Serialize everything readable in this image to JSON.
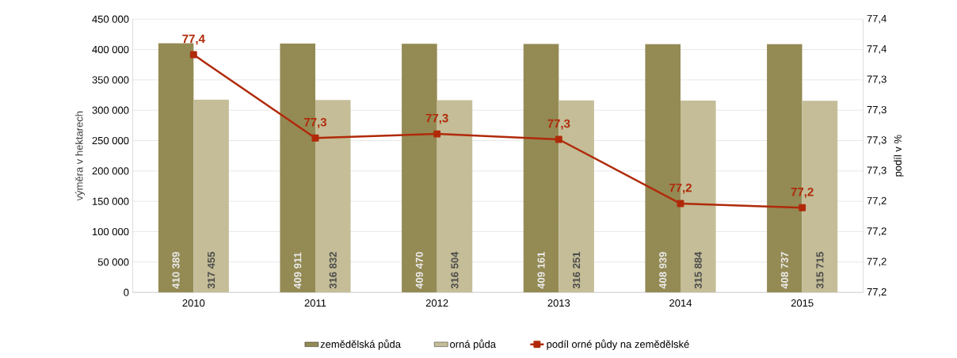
{
  "chart_data": {
    "type": "bar",
    "categories": [
      "2010",
      "2011",
      "2012",
      "2013",
      "2014",
      "2015"
    ],
    "series": [
      {
        "name": "zemědělská půda",
        "color": "#948a54",
        "values": [
          410389,
          409911,
          409470,
          409161,
          408939,
          408737
        ],
        "value_labels": [
          "410 389",
          "409 911",
          "409 470",
          "409 161",
          "408 939",
          "408 737"
        ]
      },
      {
        "name": "orná půda",
        "color": "#c4bd97",
        "values": [
          317455,
          316832,
          316504,
          316251,
          315884,
          315715
        ],
        "value_labels": [
          "317 455",
          "316 832",
          "316 504",
          "316 251",
          "315 884",
          "315 715"
        ]
      },
      {
        "name": "podíl orné půdy na zemědělské",
        "type": "line",
        "axis": "y2",
        "color": "#b02a0a",
        "values": [
          77.354,
          77.293,
          77.296,
          77.292,
          77.245,
          77.242
        ],
        "value_labels": [
          "77,4",
          "77,3",
          "77,3",
          "77,3",
          "77,2",
          "77,2"
        ]
      }
    ],
    "ylabel": "výměra v hektarech",
    "y2label": "podíl v %",
    "ylim": [
      0,
      450000
    ],
    "yticks": [
      {
        "value": 0,
        "label": "0"
      },
      {
        "value": 50000,
        "label": "50 000"
      },
      {
        "value": 100000,
        "label": "100 000"
      },
      {
        "value": 150000,
        "label": "150 000"
      },
      {
        "value": 200000,
        "label": "200 000"
      },
      {
        "value": 250000,
        "label": "250 000"
      },
      {
        "value": 300000,
        "label": "300 000"
      },
      {
        "value": 350000,
        "label": "350 000"
      },
      {
        "value": 400000,
        "label": "400 000"
      },
      {
        "value": 450000,
        "label": "450 000"
      }
    ],
    "y2lim": [
      77.18,
      77.38
    ],
    "y2ticks": [
      {
        "value": 77.18,
        "label": "77,2"
      },
      {
        "value": 77.2022,
        "label": "77,2"
      },
      {
        "value": 77.2244,
        "label": "77,2"
      },
      {
        "value": 77.2467,
        "label": "77,2"
      },
      {
        "value": 77.2689,
        "label": "77,3"
      },
      {
        "value": 77.2911,
        "label": "77,3"
      },
      {
        "value": 77.3133,
        "label": "77,3"
      },
      {
        "value": 77.3356,
        "label": "77,3"
      },
      {
        "value": 77.3578,
        "label": "77,4"
      },
      {
        "value": 77.38,
        "label": "77,4"
      }
    ],
    "grid": "y",
    "legend": "bottom",
    "marker": "square"
  }
}
